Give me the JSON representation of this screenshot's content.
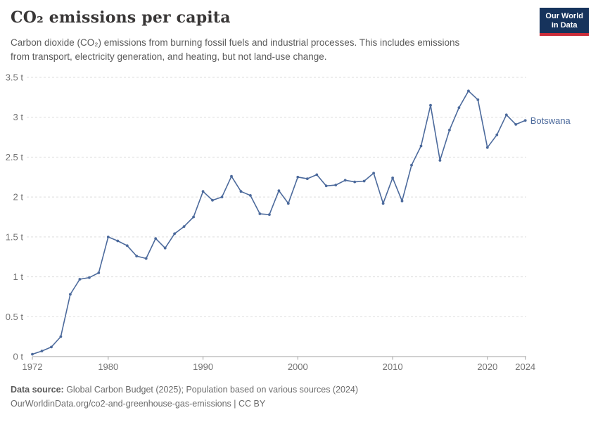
{
  "header": {
    "title": "CO₂ emissions per capita",
    "subtitle_lines": [
      "Carbon dioxide (CO₂) emissions from burning fossil fuels and industrial processes. This includes emissions",
      "from transport, electricity generation, and heating, but not land-use change."
    ],
    "logo_lines": [
      "Our World",
      "in Data"
    ]
  },
  "chart_data": {
    "type": "line",
    "title": "CO₂ emissions per capita",
    "xlabel": "",
    "ylabel": "",
    "unit": "t",
    "x": [
      1972,
      1973,
      1974,
      1975,
      1976,
      1977,
      1978,
      1979,
      1980,
      1981,
      1982,
      1983,
      1984,
      1985,
      1986,
      1987,
      1988,
      1989,
      1990,
      1991,
      1992,
      1993,
      1994,
      1995,
      1996,
      1997,
      1998,
      1999,
      2000,
      2001,
      2002,
      2003,
      2004,
      2005,
      2006,
      2007,
      2008,
      2009,
      2010,
      2011,
      2012,
      2013,
      2014,
      2015,
      2016,
      2017,
      2018,
      2019,
      2020,
      2021,
      2022,
      2023,
      2024
    ],
    "series": [
      {
        "name": "Botswana",
        "color": "#4c6a9c",
        "values": [
          0.03,
          0.07,
          0.12,
          0.25,
          0.78,
          0.97,
          0.99,
          1.05,
          1.5,
          1.45,
          1.39,
          1.26,
          1.23,
          1.48,
          1.36,
          1.54,
          1.63,
          1.75,
          2.07,
          1.96,
          2.0,
          2.26,
          2.07,
          2.02,
          1.79,
          1.78,
          2.08,
          1.92,
          2.25,
          2.23,
          2.28,
          2.14,
          2.15,
          2.21,
          2.19,
          2.2,
          2.3,
          1.92,
          2.24,
          1.95,
          2.4,
          2.64,
          3.15,
          2.46,
          2.84,
          3.12,
          3.33,
          3.22,
          2.62,
          2.78,
          3.03,
          2.91,
          2.96
        ]
      }
    ],
    "xlim": [
      1972,
      2024
    ],
    "ylim": [
      0,
      3.5
    ],
    "yticks": [
      0,
      0.5,
      1,
      1.5,
      2,
      2.5,
      3,
      3.5
    ],
    "ytick_labels": [
      "0 t",
      "0.5 t",
      "1 t",
      "1.5 t",
      "2 t",
      "2.5 t",
      "3 t",
      "3.5 t"
    ],
    "xticks": [
      1972,
      1980,
      1990,
      2000,
      2010,
      2020,
      2024
    ],
    "grid": true,
    "legend": "end-of-line-label"
  },
  "footer": {
    "source_label": "Data source:",
    "source_text": " Global Carbon Budget (2025); Population based on various sources (2024)",
    "license_line": "OurWorldinData.org/co2-and-greenhouse-gas-emissions | CC BY"
  },
  "colors": {
    "line": "#4c6a9c",
    "logo_bg": "#16335c",
    "logo_accent": "#cb2d3a",
    "grid": "#dddddd",
    "axis": "#a1a1a1",
    "axis_text": "#737373",
    "title_text": "#383636",
    "subtitle_text": "#5b5b5b",
    "footer_text": "#6b6b6b"
  }
}
